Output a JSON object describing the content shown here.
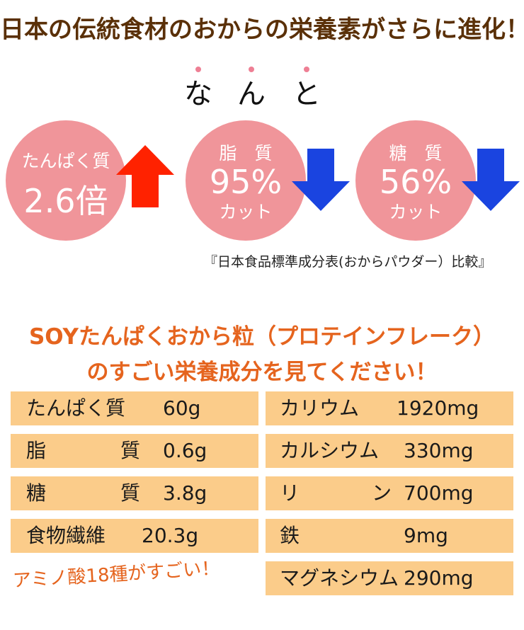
{
  "headline": "日本の伝統食材のおからの栄養素がさらに進化！",
  "emphasis": {
    "chars": [
      "な",
      "ん",
      "と"
    ],
    "dot_color": "#ee7f94"
  },
  "stats": [
    {
      "label": "たんぱく質",
      "value": "2.6倍",
      "suffix": "",
      "direction": "up",
      "arrow_color": "#ff2200"
    },
    {
      "label": "脂　質",
      "value": "95%",
      "suffix": "カット",
      "direction": "down",
      "arrow_color": "#1a44e0"
    },
    {
      "label": "糖　質",
      "value": "56%",
      "suffix": "カット",
      "direction": "down",
      "arrow_color": "#1a44e0"
    }
  ],
  "circle_color": "#f0959a",
  "source_note": "『日本食品標準成分表(おからパウダー）比較』",
  "subtitle": {
    "line1": "SOYたんぱくおから粒（プロテインフレーク）",
    "line2": "のすごい栄養成分を見てください！"
  },
  "nutrients_left": [
    {
      "name": "たんぱく質",
      "value": "60g"
    },
    {
      "name": "脂",
      "name2": "質",
      "value": "0.6g"
    },
    {
      "name": "糖",
      "name2": "質",
      "value": "3.8g"
    },
    {
      "name": "食物繊維",
      "value": "20.3g"
    }
  ],
  "nutrients_right": [
    {
      "name": "カリウム",
      "value": "1920mg"
    },
    {
      "name": "カルシウム",
      "value": "330mg"
    },
    {
      "name": "リ",
      "name2": "ン",
      "value": "700mg"
    },
    {
      "name": "鉄",
      "value": "9mg"
    },
    {
      "name": "マグネシウム",
      "value": "290mg"
    }
  ],
  "amino_note": "アミノ酸18種がすごい！",
  "colors": {
    "headline": "#5a3008",
    "accent_orange": "#e5641e",
    "cell_bg": "#fbcc8a"
  }
}
